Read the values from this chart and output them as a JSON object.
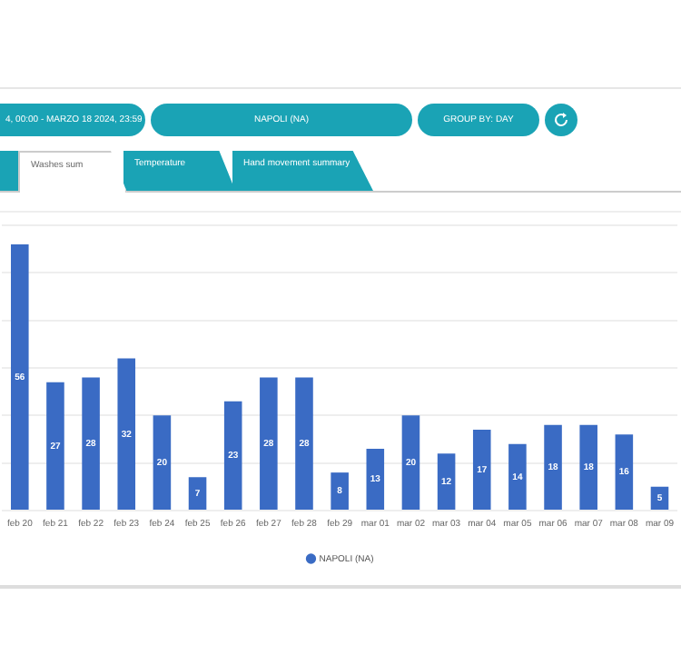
{
  "chart_data": {
    "type": "bar",
    "annotations": [
      "4, 00:00 - MARZO 18 2024, 23:59",
      "NAPOLI (NA)",
      "GROUP BY: DAY",
      "Washes sum",
      "Temperature",
      "Hand movement summary"
    ],
    "categories": [
      "feb 20",
      "feb 21",
      "feb 22",
      "feb 23",
      "feb 24",
      "feb 25",
      "feb 26",
      "feb 27",
      "feb 28",
      "feb 29",
      "mar 01",
      "mar 02",
      "mar 03",
      "mar 04",
      "mar 05",
      "mar 06",
      "mar 07",
      "mar 08",
      "mar 09"
    ],
    "series": [
      {
        "name": "NAPOLI (NA)",
        "color": "#3a6bc4",
        "values": [
          56,
          27,
          28,
          32,
          20,
          7,
          23,
          28,
          28,
          8,
          13,
          20,
          12,
          17,
          14,
          18,
          18,
          16,
          5
        ]
      }
    ],
    "ylim": [
      0,
      60
    ],
    "yticks": [
      {
        "value": 0,
        "label": null
      },
      {
        "value": 10,
        "label": null
      },
      {
        "value": 20,
        "label": null
      },
      {
        "value": 30,
        "label": null
      },
      {
        "value": 40,
        "label": null
      },
      {
        "value": 50,
        "label": null
      },
      {
        "value": 60,
        "label": null
      }
    ],
    "tick_labels": "x",
    "grid": "y",
    "legend": "bottom",
    "data_labels": true
  }
}
